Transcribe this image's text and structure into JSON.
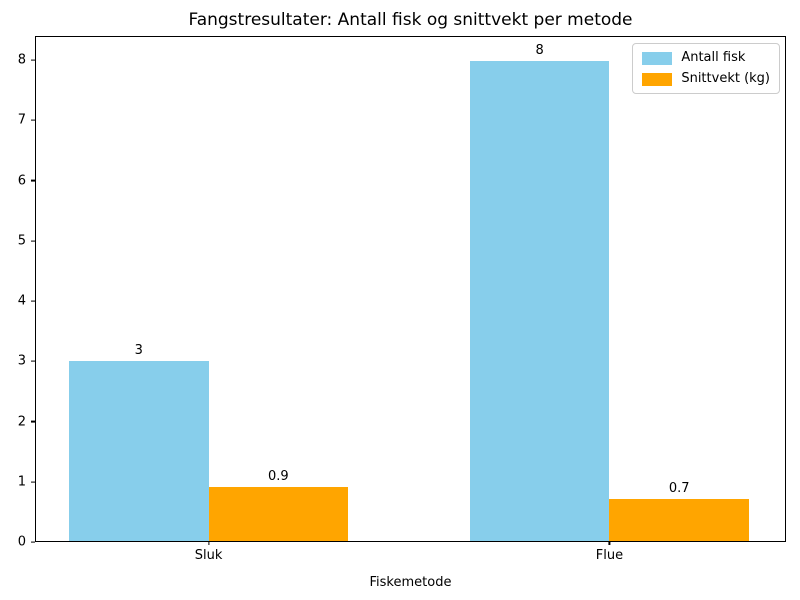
{
  "chart_data": {
    "type": "bar",
    "title": "Fangstresultater: Antall fisk og snittvekt per metode",
    "xlabel": "Fiskemetode",
    "ylabel": "",
    "categories": [
      "Sluk",
      "Flue"
    ],
    "series": [
      {
        "name": "Antall fisk",
        "color": "#87CEEB",
        "values": [
          3,
          8
        ],
        "labels": [
          "3",
          "8"
        ]
      },
      {
        "name": "Snittvekt (kg)",
        "color": "#FFA500",
        "values": [
          0.9,
          0.7
        ],
        "labels": [
          "0.9",
          "0.7"
        ]
      }
    ],
    "ylim": [
      0,
      8.4
    ],
    "yticks": [
      0,
      1,
      2,
      3,
      4,
      5,
      6,
      7,
      8
    ],
    "grid": false,
    "legend_position": "upper right",
    "bar_value_labels": true,
    "background": "#ffffff",
    "text_color": "#000000"
  }
}
